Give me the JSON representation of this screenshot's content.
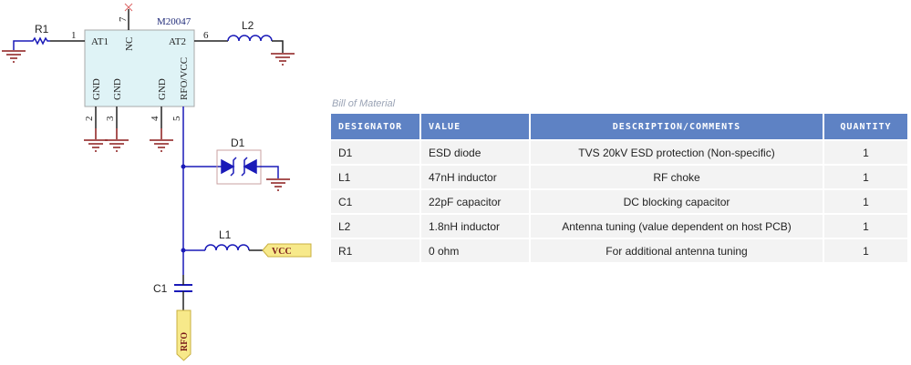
{
  "schematic": {
    "chip": {
      "part": "M20047",
      "pins": {
        "at1": "AT1",
        "at2": "AT2",
        "nc": "NC",
        "gnd": "GND",
        "rfo_vcc": "RFO/VCC"
      },
      "pin_numbers": [
        "1",
        "2",
        "3",
        "4",
        "5",
        "6",
        "7"
      ]
    },
    "components": {
      "r1": "R1",
      "l2": "L2",
      "d1": "D1",
      "l1": "L1",
      "c1": "C1"
    },
    "ports": {
      "vcc": "VCC",
      "rfo": "RFO"
    },
    "colors": {
      "wire": "#1a1ab8",
      "ground": "#8b1a1a",
      "chip_fill": "#dff3f6",
      "port_fill": "#f7e98a"
    }
  },
  "bom": {
    "title": "Bill of Material",
    "headers": [
      "DESIGNATOR",
      "VALUE",
      "DESCRIPTION/COMMENTS",
      "QUANTITY"
    ],
    "rows": [
      [
        "D1",
        "ESD diode",
        "TVS 20kV ESD protection (Non-specific)",
        "1"
      ],
      [
        "L1",
        "47nH inductor",
        "RF choke",
        "1"
      ],
      [
        "C1",
        "22pF capacitor",
        "DC blocking capacitor",
        "1"
      ],
      [
        "L2",
        "1.8nH inductor",
        "Antenna tuning (value dependent on host PCB)",
        "1"
      ],
      [
        "R1",
        "0 ohm",
        "For additional antenna tuning",
        "1"
      ]
    ],
    "header_color": "#5e82c4"
  }
}
